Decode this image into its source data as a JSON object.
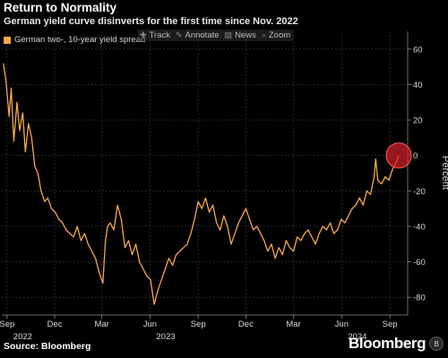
{
  "header": {
    "title": "Return to Normality",
    "subtitle": "German yield curve disinverts for the first time since Nov. 2022"
  },
  "toolbar": {
    "items": [
      {
        "label": "Track",
        "icon": "crosshair-icon",
        "glyph": "✚"
      },
      {
        "label": "Annotate",
        "icon": "pencil-icon",
        "glyph": "✎"
      },
      {
        "label": "News",
        "icon": "news-icon",
        "glyph": "▤"
      },
      {
        "label": "Zoom",
        "icon": "magnifier-icon",
        "glyph": "⌕"
      }
    ]
  },
  "footer": {
    "source": "Source: Bloomberg",
    "brand": "Bloomberg",
    "badge": "B"
  },
  "colors": {
    "background": "#000000",
    "line": "#f7a84a",
    "highlight": "#d0202a",
    "grid": "#3c3c3c",
    "text": "#ffffff"
  },
  "chart_data": {
    "type": "line",
    "title": "Return to Normality",
    "subtitle": "German yield curve disinverts for the first time since Nov. 2022",
    "ylabel": "Percent",
    "xlabel": "",
    "ylim": [
      -90,
      70
    ],
    "yticks": [
      60,
      40,
      20,
      0,
      -20,
      -40,
      -60,
      -80
    ],
    "grid": true,
    "y_axis_side": "right",
    "xticks": [
      {
        "date": "2022-09-01",
        "label": "Sep"
      },
      {
        "date": "2022-12-01",
        "label": "Dec"
      },
      {
        "date": "2023-03-01",
        "label": "Mar"
      },
      {
        "date": "2023-06-01",
        "label": "Jun"
      },
      {
        "date": "2023-09-01",
        "label": "Sep"
      },
      {
        "date": "2023-12-01",
        "label": "Dec"
      },
      {
        "date": "2024-03-01",
        "label": "Mar"
      },
      {
        "date": "2024-06-01",
        "label": "Jun"
      },
      {
        "date": "2024-09-01",
        "label": "Sep"
      }
    ],
    "year_labels": [
      {
        "date": "2022-10-01",
        "label": "2022"
      },
      {
        "date": "2023-07-01",
        "label": "2023"
      },
      {
        "date": "2024-07-01",
        "label": "2024"
      }
    ],
    "xlim": [
      "2022-08-22",
      "2024-10-05"
    ],
    "legend_position": "top-left",
    "highlight": {
      "date": "2024-09-18",
      "value": 0
    },
    "series": [
      {
        "name": "German two-, 10-year yield spread",
        "x": [
          "2022-08-25",
          "2022-08-30",
          "2022-09-05",
          "2022-09-09",
          "2022-09-14",
          "2022-09-20",
          "2022-09-25",
          "2022-10-01",
          "2022-10-06",
          "2022-10-12",
          "2022-10-18",
          "2022-10-24",
          "2022-10-30",
          "2022-11-05",
          "2022-11-12",
          "2022-11-18",
          "2022-11-25",
          "2022-12-02",
          "2022-12-09",
          "2022-12-16",
          "2022-12-23",
          "2022-12-30",
          "2023-01-06",
          "2023-01-13",
          "2023-01-20",
          "2023-01-27",
          "2023-02-03",
          "2023-02-10",
          "2023-02-17",
          "2023-02-24",
          "2023-03-03",
          "2023-03-08",
          "2023-03-12",
          "2023-03-17",
          "2023-03-24",
          "2023-03-31",
          "2023-04-07",
          "2023-04-14",
          "2023-04-21",
          "2023-04-28",
          "2023-05-05",
          "2023-05-12",
          "2023-05-19",
          "2023-05-26",
          "2023-06-02",
          "2023-06-09",
          "2023-06-16",
          "2023-06-23",
          "2023-06-30",
          "2023-07-07",
          "2023-07-14",
          "2023-07-21",
          "2023-07-28",
          "2023-08-04",
          "2023-08-11",
          "2023-08-18",
          "2023-08-25",
          "2023-09-01",
          "2023-09-08",
          "2023-09-15",
          "2023-09-22",
          "2023-09-29",
          "2023-10-06",
          "2023-10-13",
          "2023-10-20",
          "2023-10-27",
          "2023-11-03",
          "2023-11-10",
          "2023-11-17",
          "2023-11-24",
          "2023-12-01",
          "2023-12-08",
          "2023-12-15",
          "2023-12-22",
          "2023-12-29",
          "2024-01-05",
          "2024-01-12",
          "2024-01-19",
          "2024-01-26",
          "2024-02-02",
          "2024-02-09",
          "2024-02-16",
          "2024-02-23",
          "2024-03-01",
          "2024-03-08",
          "2024-03-15",
          "2024-03-22",
          "2024-03-29",
          "2024-04-05",
          "2024-04-12",
          "2024-04-19",
          "2024-04-26",
          "2024-05-03",
          "2024-05-10",
          "2024-05-17",
          "2024-05-24",
          "2024-05-31",
          "2024-06-07",
          "2024-06-14",
          "2024-06-21",
          "2024-06-28",
          "2024-07-05",
          "2024-07-12",
          "2024-07-19",
          "2024-07-26",
          "2024-08-02",
          "2024-08-05",
          "2024-08-09",
          "2024-08-16",
          "2024-08-23",
          "2024-08-30",
          "2024-09-06",
          "2024-09-13",
          "2024-09-18"
        ],
        "y": [
          52,
          42,
          22,
          38,
          8,
          30,
          14,
          24,
          2,
          18,
          10,
          -6,
          -10,
          -20,
          -26,
          -24,
          -30,
          -32,
          -36,
          -38,
          -42,
          -44,
          -46,
          -40,
          -48,
          -44,
          -50,
          -54,
          -58,
          -66,
          -72,
          -48,
          -40,
          -38,
          -42,
          -28,
          -36,
          -52,
          -48,
          -56,
          -50,
          -60,
          -64,
          -68,
          -70,
          -84,
          -76,
          -70,
          -64,
          -58,
          -62,
          -56,
          -54,
          -52,
          -50,
          -44,
          -36,
          -26,
          -30,
          -24,
          -32,
          -28,
          -38,
          -42,
          -34,
          -40,
          -50,
          -44,
          -38,
          -34,
          -30,
          -36,
          -42,
          -40,
          -44,
          -48,
          -54,
          -50,
          -58,
          -52,
          -56,
          -48,
          -52,
          -54,
          -46,
          -48,
          -44,
          -42,
          -46,
          -50,
          -44,
          -40,
          -42,
          -38,
          -44,
          -42,
          -36,
          -38,
          -34,
          -30,
          -28,
          -24,
          -28,
          -20,
          -22,
          -12,
          -2,
          -14,
          -16,
          -12,
          -14,
          -8,
          -4,
          0
        ]
      }
    ]
  }
}
